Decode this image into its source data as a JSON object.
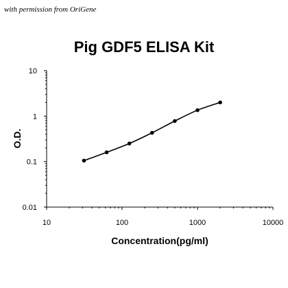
{
  "watermark": "with permission from OriGene",
  "chart_data": {
    "type": "line",
    "title": "Pig GDF5 ELISA Kit",
    "xlabel": "Concentration(pg/ml)",
    "ylabel": "O.D.",
    "x_scale": "log",
    "y_scale": "log",
    "xlim": [
      10,
      10000
    ],
    "ylim": [
      0.01,
      10
    ],
    "x_ticks": [
      "10",
      "100",
      "1000",
      "10000"
    ],
    "y_ticks": [
      "0.01",
      "0.1",
      "1",
      "10"
    ],
    "grid": false,
    "legend": "none",
    "series": [
      {
        "x": [
          31.25,
          62.5,
          125,
          250,
          500,
          1000,
          2000
        ],
        "y": [
          0.105,
          0.16,
          0.25,
          0.43,
          0.78,
          1.35,
          2.0
        ],
        "color": "#000000",
        "marker": "circle"
      }
    ]
  }
}
